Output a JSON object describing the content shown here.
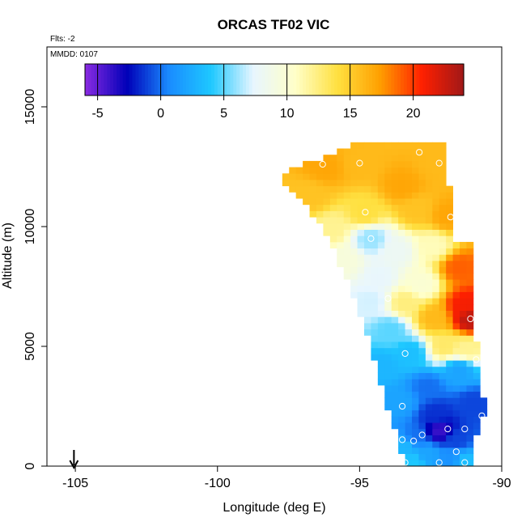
{
  "chart_data": {
    "type": "heatmap",
    "title": "ORCAS TF02 VIC",
    "corner_labels": {
      "flights": "Flts: -2",
      "date": "MMDD: 0107"
    },
    "xlabel": "Longitude (deg E)",
    "ylabel": "Altitude (m)",
    "xlim": [
      -106,
      -90
    ],
    "ylim": [
      0,
      17500
    ],
    "xticks": [
      -105,
      -100,
      -95,
      -90
    ],
    "yticks": [
      0,
      5000,
      10000,
      15000
    ],
    "colorbar": {
      "range": [
        -6,
        24
      ],
      "ticks": [
        -5,
        0,
        5,
        10,
        15,
        20
      ],
      "colors": [
        "#8a2be2",
        "#0000b8",
        "#1a8cff",
        "#1ec8ff",
        "#e8f6ff",
        "#ffffc8",
        "#ffe040",
        "#ffa000",
        "#ff2000",
        "#a01818"
      ]
    },
    "marker": {
      "longitude": -105.05,
      "label": "arrow"
    },
    "grid": false,
    "legend": "colorbar-top",
    "value_field": [
      {
        "lon": -96.2,
        "alt": 12450,
        "v": 17
      },
      {
        "lon": -95.0,
        "alt": 12650,
        "v": 16
      },
      {
        "lon": -92.2,
        "alt": 12600,
        "v": 16
      },
      {
        "lon": -93.5,
        "alt": 11700,
        "v": 17
      },
      {
        "lon": -96.7,
        "alt": 11300,
        "v": 15.5
      },
      {
        "lon": -94.8,
        "alt": 10550,
        "v": 14
      },
      {
        "lon": -93.0,
        "alt": 10700,
        "v": 15.5
      },
      {
        "lon": -91.9,
        "alt": 10450,
        "v": 17
      },
      {
        "lon": -96.0,
        "alt": 9900,
        "v": 12
      },
      {
        "lon": -94.6,
        "alt": 9500,
        "v": 6
      },
      {
        "lon": -93.7,
        "alt": 9000,
        "v": 8
      },
      {
        "lon": -92.4,
        "alt": 9200,
        "v": 11
      },
      {
        "lon": -95.5,
        "alt": 8600,
        "v": 9.5
      },
      {
        "lon": -94.3,
        "alt": 7900,
        "v": 7.5
      },
      {
        "lon": -92.8,
        "alt": 7600,
        "v": 10
      },
      {
        "lon": -91.5,
        "alt": 8300,
        "v": 19
      },
      {
        "lon": -91.3,
        "alt": 6700,
        "v": 21
      },
      {
        "lon": -91.1,
        "alt": 6150,
        "v": 23
      },
      {
        "lon": -92.4,
        "alt": 6200,
        "v": 16
      },
      {
        "lon": -93.4,
        "alt": 6800,
        "v": 12.5
      },
      {
        "lon": -94.6,
        "alt": 6900,
        "v": 7
      },
      {
        "lon": -93.9,
        "alt": 5700,
        "v": 5
      },
      {
        "lon": -92.0,
        "alt": 5000,
        "v": 13
      },
      {
        "lon": -91.2,
        "alt": 4900,
        "v": 12
      },
      {
        "lon": -93.2,
        "alt": 4700,
        "v": 3.5
      },
      {
        "lon": -94.2,
        "alt": 4200,
        "v": 3
      },
      {
        "lon": -91.5,
        "alt": 4000,
        "v": 2
      },
      {
        "lon": -92.6,
        "alt": 3300,
        "v": 0
      },
      {
        "lon": -93.6,
        "alt": 2700,
        "v": 2
      },
      {
        "lon": -92.3,
        "alt": 2200,
        "v": -1.5
      },
      {
        "lon": -91.0,
        "alt": 2600,
        "v": -1
      },
      {
        "lon": -92.2,
        "alt": 1450,
        "v": -4
      },
      {
        "lon": -91.6,
        "alt": 1100,
        "v": -1
      },
      {
        "lon": -93.0,
        "alt": 1200,
        "v": 0
      },
      {
        "lon": -93.4,
        "alt": 800,
        "v": 3
      },
      {
        "lon": -92.6,
        "alt": 500,
        "v": 2
      },
      {
        "lon": -91.8,
        "alt": 300,
        "v": 1
      },
      {
        "lon": -93.1,
        "alt": 150,
        "v": 4
      },
      {
        "lon": -91.3,
        "alt": 200,
        "v": 3.5
      }
    ],
    "samples": [
      {
        "lon": -96.3,
        "alt": 12600
      },
      {
        "lon": -95.0,
        "alt": 12650
      },
      {
        "lon": -92.2,
        "alt": 12650
      },
      {
        "lon": -92.9,
        "alt": 13100
      },
      {
        "lon": -94.8,
        "alt": 10600
      },
      {
        "lon": -91.8,
        "alt": 10400
      },
      {
        "lon": -94.6,
        "alt": 9500
      },
      {
        "lon": -94.0,
        "alt": 7000
      },
      {
        "lon": -91.1,
        "alt": 6150
      },
      {
        "lon": -93.4,
        "alt": 4700
      },
      {
        "lon": -90.9,
        "alt": 4450
      },
      {
        "lon": -93.5,
        "alt": 2500
      },
      {
        "lon": -90.7,
        "alt": 2100
      },
      {
        "lon": -91.9,
        "alt": 1550
      },
      {
        "lon": -91.3,
        "alt": 1550
      },
      {
        "lon": -92.8,
        "alt": 1300
      },
      {
        "lon": -93.5,
        "alt": 1100
      },
      {
        "lon": -93.1,
        "alt": 1050
      },
      {
        "lon": -91.6,
        "alt": 600
      },
      {
        "lon": -93.4,
        "alt": 150
      },
      {
        "lon": -92.2,
        "alt": 150
      },
      {
        "lon": -91.3,
        "alt": 150
      }
    ]
  }
}
